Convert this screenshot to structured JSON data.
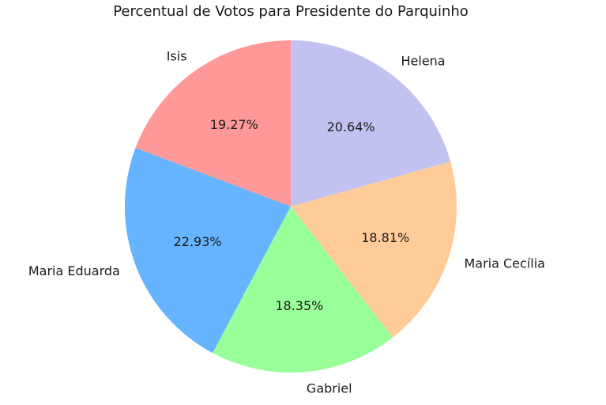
{
  "chart_data": {
    "type": "pie",
    "title": "Percentual de Votos para Presidente do Parquinho",
    "start_angle_deg": 90,
    "direction": "counterclockwise",
    "slices": [
      {
        "name": "Isis",
        "value": 19.27,
        "label": "19.27%",
        "color": "#ff9999"
      },
      {
        "name": "Maria Eduarda",
        "value": 22.93,
        "label": "22.93%",
        "color": "#66b3ff"
      },
      {
        "name": "Gabriel",
        "value": 18.35,
        "label": "18.35%",
        "color": "#99ff99"
      },
      {
        "name": "Maria Cecília",
        "value": 18.81,
        "label": "18.81%",
        "color": "#ffcc99"
      },
      {
        "name": "Helena",
        "value": 20.64,
        "label": "20.64%",
        "color": "#c2c2f0"
      }
    ]
  }
}
